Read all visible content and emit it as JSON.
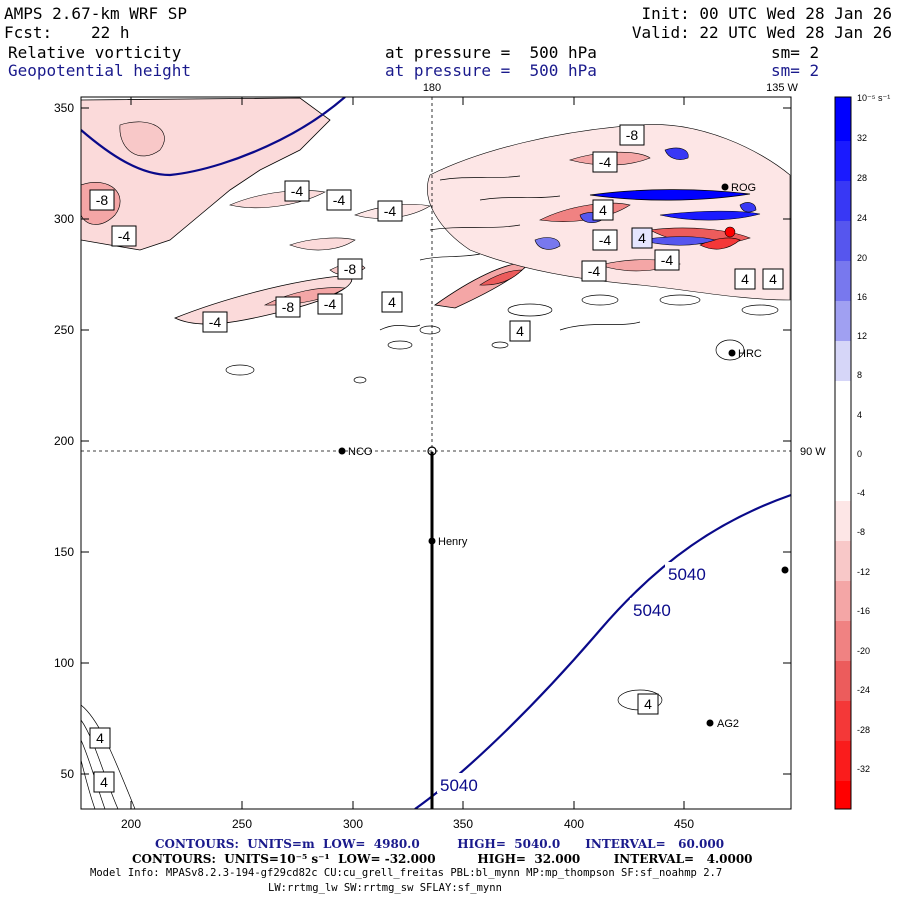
{
  "header": {
    "model_title": "AMPS 2.67-km WRF SP",
    "forecast_label": "Fcst:",
    "forecast_hours": "22 h",
    "init_label": "Init: 00 UTC Wed 28 Jan 26",
    "valid_label": "Valid: 22 UTC Wed 28 Jan 26",
    "field1_name": "Relative vorticity",
    "field1_level": "at pressure =  500 hPa",
    "field1_smooth": "sm= 2",
    "field2_name": "Geopotential height",
    "field2_level": "at pressure =  500 hPa",
    "field2_smooth": "sm= 2"
  },
  "map": {
    "x_ticks": [
      "200",
      "250",
      "300",
      "350",
      "400",
      "450"
    ],
    "y_ticks": [
      "350",
      "300",
      "250",
      "200",
      "150",
      "100",
      "50"
    ],
    "lon_label_top_1": "180",
    "lon_label_top_2": "135 W",
    "lon_label_right": "90 W",
    "stations": [
      {
        "name": "NCO"
      },
      {
        "name": "Henry"
      },
      {
        "name": "AG2"
      },
      {
        "name": "HRC"
      },
      {
        "name": "ROG"
      },
      {
        "name": ""
      }
    ],
    "height_contour_labels": [
      "5040",
      "5040",
      "5040"
    ],
    "vorticity_contour_labels": [
      "-8",
      "-4",
      "-4",
      "-4",
      "-4",
      "-8",
      "-4",
      "-8",
      "-4",
      "-4",
      "-4",
      "4",
      "-4",
      "4",
      "-8",
      "4",
      "-4",
      "4",
      "4",
      "4",
      "4",
      "4",
      "4"
    ],
    "colors": {
      "height_contour": "#0a0a8a",
      "positive_vort": "#e05050",
      "negative_vort": "#3050d0"
    }
  },
  "colorbar": {
    "unit": "10⁻⁵ s⁻¹",
    "labels": [
      "32",
      "28",
      "24",
      "20",
      "16",
      "12",
      "8",
      "4",
      "0",
      "-4",
      "-8",
      "-12",
      "-16",
      "-20",
      "-24",
      "-28",
      "-32"
    ],
    "colors": [
      "#0000ff",
      "#1a1aff",
      "#3838f5",
      "#5656ee",
      "#7878ee",
      "#a0a0f2",
      "#d6d6f8",
      "#ffffff",
      "#ffffff",
      "#fde6e6",
      "#f8c8c8",
      "#f4a6a6",
      "#f08282",
      "#ec5c5c",
      "#f43838",
      "#fa1c1c",
      "#ff0000"
    ]
  },
  "footer": {
    "contours_height": "CONTOURS:  UNITS=m  LOW=  4980.0         HIGH=  5040.0      INTERVAL=   60.000",
    "contours_vort": "CONTOURS:  UNITS=10⁻⁵ s⁻¹  LOW= -32.000          HIGH=  32.000        INTERVAL=   4.0000",
    "model_info_1": "Model Info: MPASv8.2.3-194-gf29cd82c CU:cu_grell_freitas PBL:bl_mynn MP:mp_thompson SF:sf_noahmp 2.7",
    "model_info_2": "LW:rrtmg_lw SW:rrtmg_sw SFLAY:sf_mynn"
  }
}
